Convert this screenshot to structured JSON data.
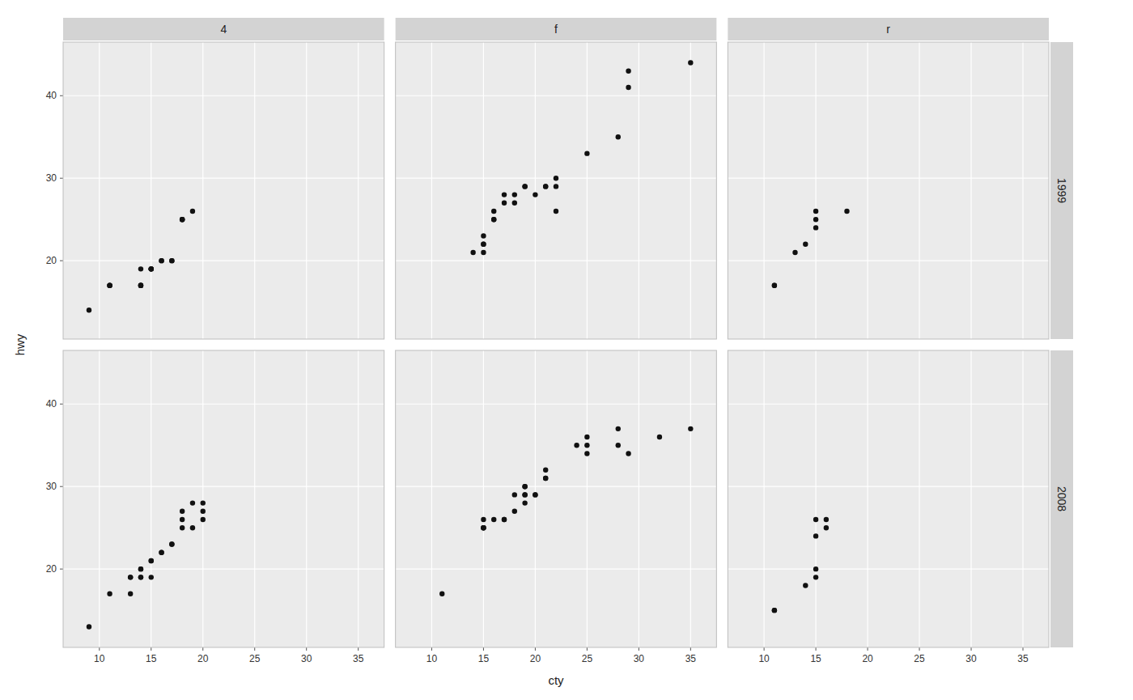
{
  "chart_data": [
    {
      "type": "scatter",
      "title": "4",
      "color": "#111111",
      "grid": true,
      "tick_labels": "y",
      "xlim": [
        6.5,
        37.5
      ],
      "ylim": [
        10.5,
        46.5
      ],
      "xticks": [
        10,
        15,
        20,
        25,
        30,
        35
      ],
      "yticks": [
        20,
        30,
        40
      ],
      "x": [
        9,
        11,
        11,
        11,
        14,
        14,
        14,
        14,
        14,
        15,
        15,
        15,
        15,
        16,
        16,
        17,
        17,
        18,
        18,
        18,
        19
      ],
      "values": [
        14,
        17,
        17,
        17,
        17,
        17,
        17,
        17,
        19,
        19,
        19,
        19,
        19,
        20,
        20,
        20,
        20,
        25,
        25,
        25,
        26
      ]
    },
    {
      "type": "scatter",
      "title": "f",
      "color": "#111111",
      "grid": true,
      "tick_labels": false,
      "xlim": [
        6.5,
        37.5
      ],
      "ylim": [
        10.5,
        46.5
      ],
      "xticks": [
        10,
        15,
        20,
        25,
        30,
        35
      ],
      "yticks": [
        20,
        30,
        40
      ],
      "x": [
        14,
        15,
        15,
        15,
        15,
        16,
        16,
        16,
        17,
        17,
        18,
        18,
        19,
        19,
        20,
        21,
        21,
        22,
        22,
        22,
        25,
        28,
        29,
        29,
        35
      ],
      "values": [
        21,
        21,
        22,
        22,
        23,
        25,
        25,
        26,
        27,
        28,
        27,
        28,
        29,
        29,
        28,
        29,
        29,
        26,
        29,
        30,
        33,
        35,
        41,
        43,
        44
      ]
    },
    {
      "type": "scatter",
      "title": "r",
      "subtitle": "1999",
      "color": "#111111",
      "grid": true,
      "tick_labels": false,
      "xlim": [
        6.5,
        37.5
      ],
      "ylim": [
        10.5,
        46.5
      ],
      "xticks": [
        10,
        15,
        20,
        25,
        30,
        35
      ],
      "yticks": [
        20,
        30,
        40
      ],
      "x": [
        11,
        11,
        13,
        14,
        15,
        15,
        15,
        18
      ],
      "values": [
        17,
        17,
        21,
        22,
        25,
        26,
        24,
        26
      ]
    },
    {
      "type": "scatter",
      "ylabel": "hwy",
      "color": "#111111",
      "grid": true,
      "tick_labels": true,
      "xlim": [
        6.5,
        37.5
      ],
      "ylim": [
        10.5,
        46.5
      ],
      "xticks": [
        10,
        15,
        20,
        25,
        30,
        35
      ],
      "yticks": [
        20,
        30,
        40
      ],
      "x": [
        9,
        11,
        13,
        13,
        13,
        14,
        14,
        14,
        14,
        15,
        15,
        15,
        16,
        16,
        17,
        17,
        18,
        18,
        18,
        19,
        19,
        20,
        20,
        20
      ],
      "values": [
        13,
        17,
        17,
        19,
        19,
        19,
        19,
        20,
        20,
        19,
        21,
        21,
        22,
        22,
        23,
        23,
        25,
        26,
        27,
        25,
        28,
        26,
        27,
        28
      ]
    },
    {
      "type": "scatter",
      "xlabel": "cty",
      "color": "#111111",
      "grid": true,
      "tick_labels": "x",
      "xlim": [
        6.5,
        37.5
      ],
      "ylim": [
        10.5,
        46.5
      ],
      "xticks": [
        10,
        15,
        20,
        25,
        30,
        35
      ],
      "yticks": [
        20,
        30,
        40
      ],
      "x": [
        11,
        15,
        15,
        15,
        15,
        16,
        17,
        17,
        18,
        18,
        19,
        19,
        19,
        19,
        19,
        20,
        20,
        21,
        21,
        21,
        24,
        25,
        25,
        25,
        28,
        28,
        29,
        32,
        35
      ],
      "values": [
        17,
        25,
        25,
        25,
        26,
        26,
        26,
        26,
        27,
        29,
        28,
        29,
        29,
        30,
        30,
        29,
        29,
        31,
        31,
        32,
        35,
        34,
        35,
        36,
        35,
        37,
        34,
        36,
        37
      ]
    },
    {
      "type": "scatter",
      "subtitle": "2008",
      "color": "#111111",
      "grid": true,
      "tick_labels": "x",
      "xlim": [
        6.5,
        37.5
      ],
      "ylim": [
        10.5,
        46.5
      ],
      "xticks": [
        10,
        15,
        20,
        25,
        30,
        35
      ],
      "yticks": [
        20,
        30,
        40
      ],
      "x": [
        11,
        11,
        14,
        15,
        15,
        15,
        15,
        16,
        16
      ],
      "values": [
        15,
        15,
        18,
        19,
        20,
        24,
        26,
        25,
        26
      ]
    }
  ]
}
